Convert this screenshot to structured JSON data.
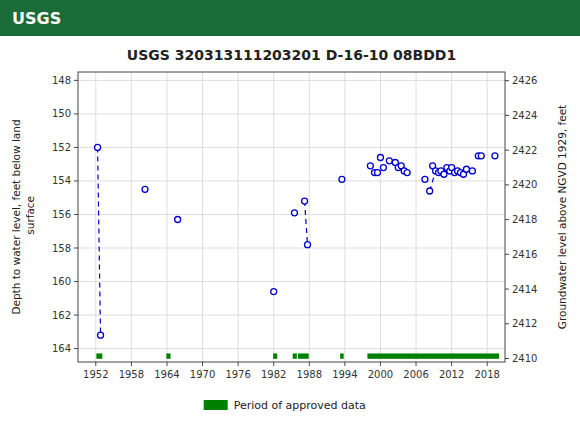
{
  "chart_data": {
    "type": "scatter",
    "title": "USGS 320313111203201 D-16-10 08BDD1",
    "annotations": [
      "USGS"
    ],
    "y_label": "Depth to water level, feet below land\n surface",
    "y2_label": "Groundwater level above NGVD 1929, feet",
    "xlim": [
      1949,
      2021
    ],
    "xticks": [
      1952,
      1958,
      1964,
      1970,
      1976,
      1982,
      1988,
      1994,
      2000,
      2006,
      2012,
      2018
    ],
    "ylim": [
      164.8,
      147.5
    ],
    "yticks": [
      148,
      150,
      152,
      154,
      156,
      158,
      160,
      162,
      164
    ],
    "y2lim": [
      2409.8,
      2426.5
    ],
    "y2ticks": [
      2426,
      2424,
      2422,
      2420,
      2418,
      2416,
      2414,
      2412,
      2410
    ],
    "grid": true,
    "legend": "bottom",
    "series": [
      {
        "type": "line",
        "line_style": "dashed",
        "color": "#0000cc",
        "x": [
          1952.3,
          1952.8,
          null,
          1987.2,
          1987.7,
          null,
          2008.3,
          2009.3
        ],
        "values": [
          152.0,
          163.2,
          null,
          155.2,
          157.8,
          null,
          154.6,
          153.4
        ]
      },
      {
        "type": "scatter",
        "marker": "circle",
        "color": "#0000cc",
        "x": [
          1952.3,
          1952.8,
          1960.3,
          1965.8,
          1982.0,
          1985.5,
          1987.2,
          1987.7,
          1993.5,
          1998.3,
          1999.0,
          1999.5,
          2000.0,
          2000.5,
          2001.5,
          2002.5,
          2003.0,
          2003.5,
          2004.0,
          2004.5,
          2007.5,
          2008.3,
          2008.8,
          2009.3,
          2009.8,
          2010.2,
          2010.7,
          2011.2,
          2011.7,
          2012.0,
          2012.5,
          2013.0,
          2013.5,
          2014.0,
          2014.5,
          2015.5,
          2016.5,
          2017.0,
          2019.3
        ],
        "values": [
          152.0,
          163.2,
          154.5,
          156.3,
          160.6,
          155.9,
          155.2,
          157.8,
          153.9,
          153.1,
          153.5,
          153.5,
          152.6,
          153.2,
          152.8,
          152.9,
          153.2,
          153.1,
          153.4,
          153.5,
          153.9,
          154.6,
          153.1,
          153.4,
          153.5,
          153.4,
          153.6,
          153.2,
          153.4,
          153.2,
          153.5,
          153.4,
          153.5,
          153.6,
          153.3,
          153.4,
          152.5,
          152.5,
          152.5
        ]
      },
      {
        "type": "interval",
        "name": "Period of approved data",
        "color": "#008000",
        "start": [
          1952.1,
          1963.9,
          1981.9,
          1985.2,
          1986.1,
          1993.2,
          1997.8
        ],
        "end": [
          1953.1,
          1964.6,
          1982.6,
          1985.9,
          1987.9,
          1993.8,
          2020.0
        ],
        "y": 164.45,
        "height": 0.32
      }
    ]
  }
}
